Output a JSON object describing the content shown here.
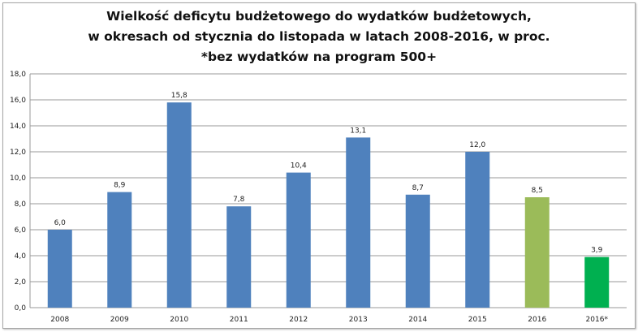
{
  "chart_data": {
    "type": "bar",
    "title": [
      "Wielkość deficytu budżetowego do wydatków  budżetowych,",
      "w okresach od stycznia do listopada w latach 2008-2016, w proc.",
      "*bez wydatków na program 500+"
    ],
    "categories": [
      "2008",
      "2009",
      "2010",
      "2011",
      "2012",
      "2013",
      "2014",
      "2015",
      "2016",
      "2016*"
    ],
    "values": [
      6.0,
      8.9,
      15.8,
      7.8,
      10.4,
      13.1,
      8.7,
      12.0,
      8.5,
      3.9
    ],
    "data_labels": [
      "6,0",
      "8,9",
      "15,8",
      "7,8",
      "10,4",
      "13,1",
      "8,7",
      "12,0",
      "8,5",
      "3,9"
    ],
    "colors": [
      "#4f81bd",
      "#4f81bd",
      "#4f81bd",
      "#4f81bd",
      "#4f81bd",
      "#4f81bd",
      "#4f81bd",
      "#4f81bd",
      "#9bbb59",
      "#00b050"
    ],
    "yticks": [
      "0,0",
      "2,0",
      "4,0",
      "6,0",
      "8,0",
      "10,0",
      "12,0",
      "14,0",
      "16,0",
      "18,0"
    ],
    "ylim": [
      0,
      18
    ],
    "xlabel": "",
    "ylabel": "",
    "grid": true,
    "legend": "none"
  }
}
